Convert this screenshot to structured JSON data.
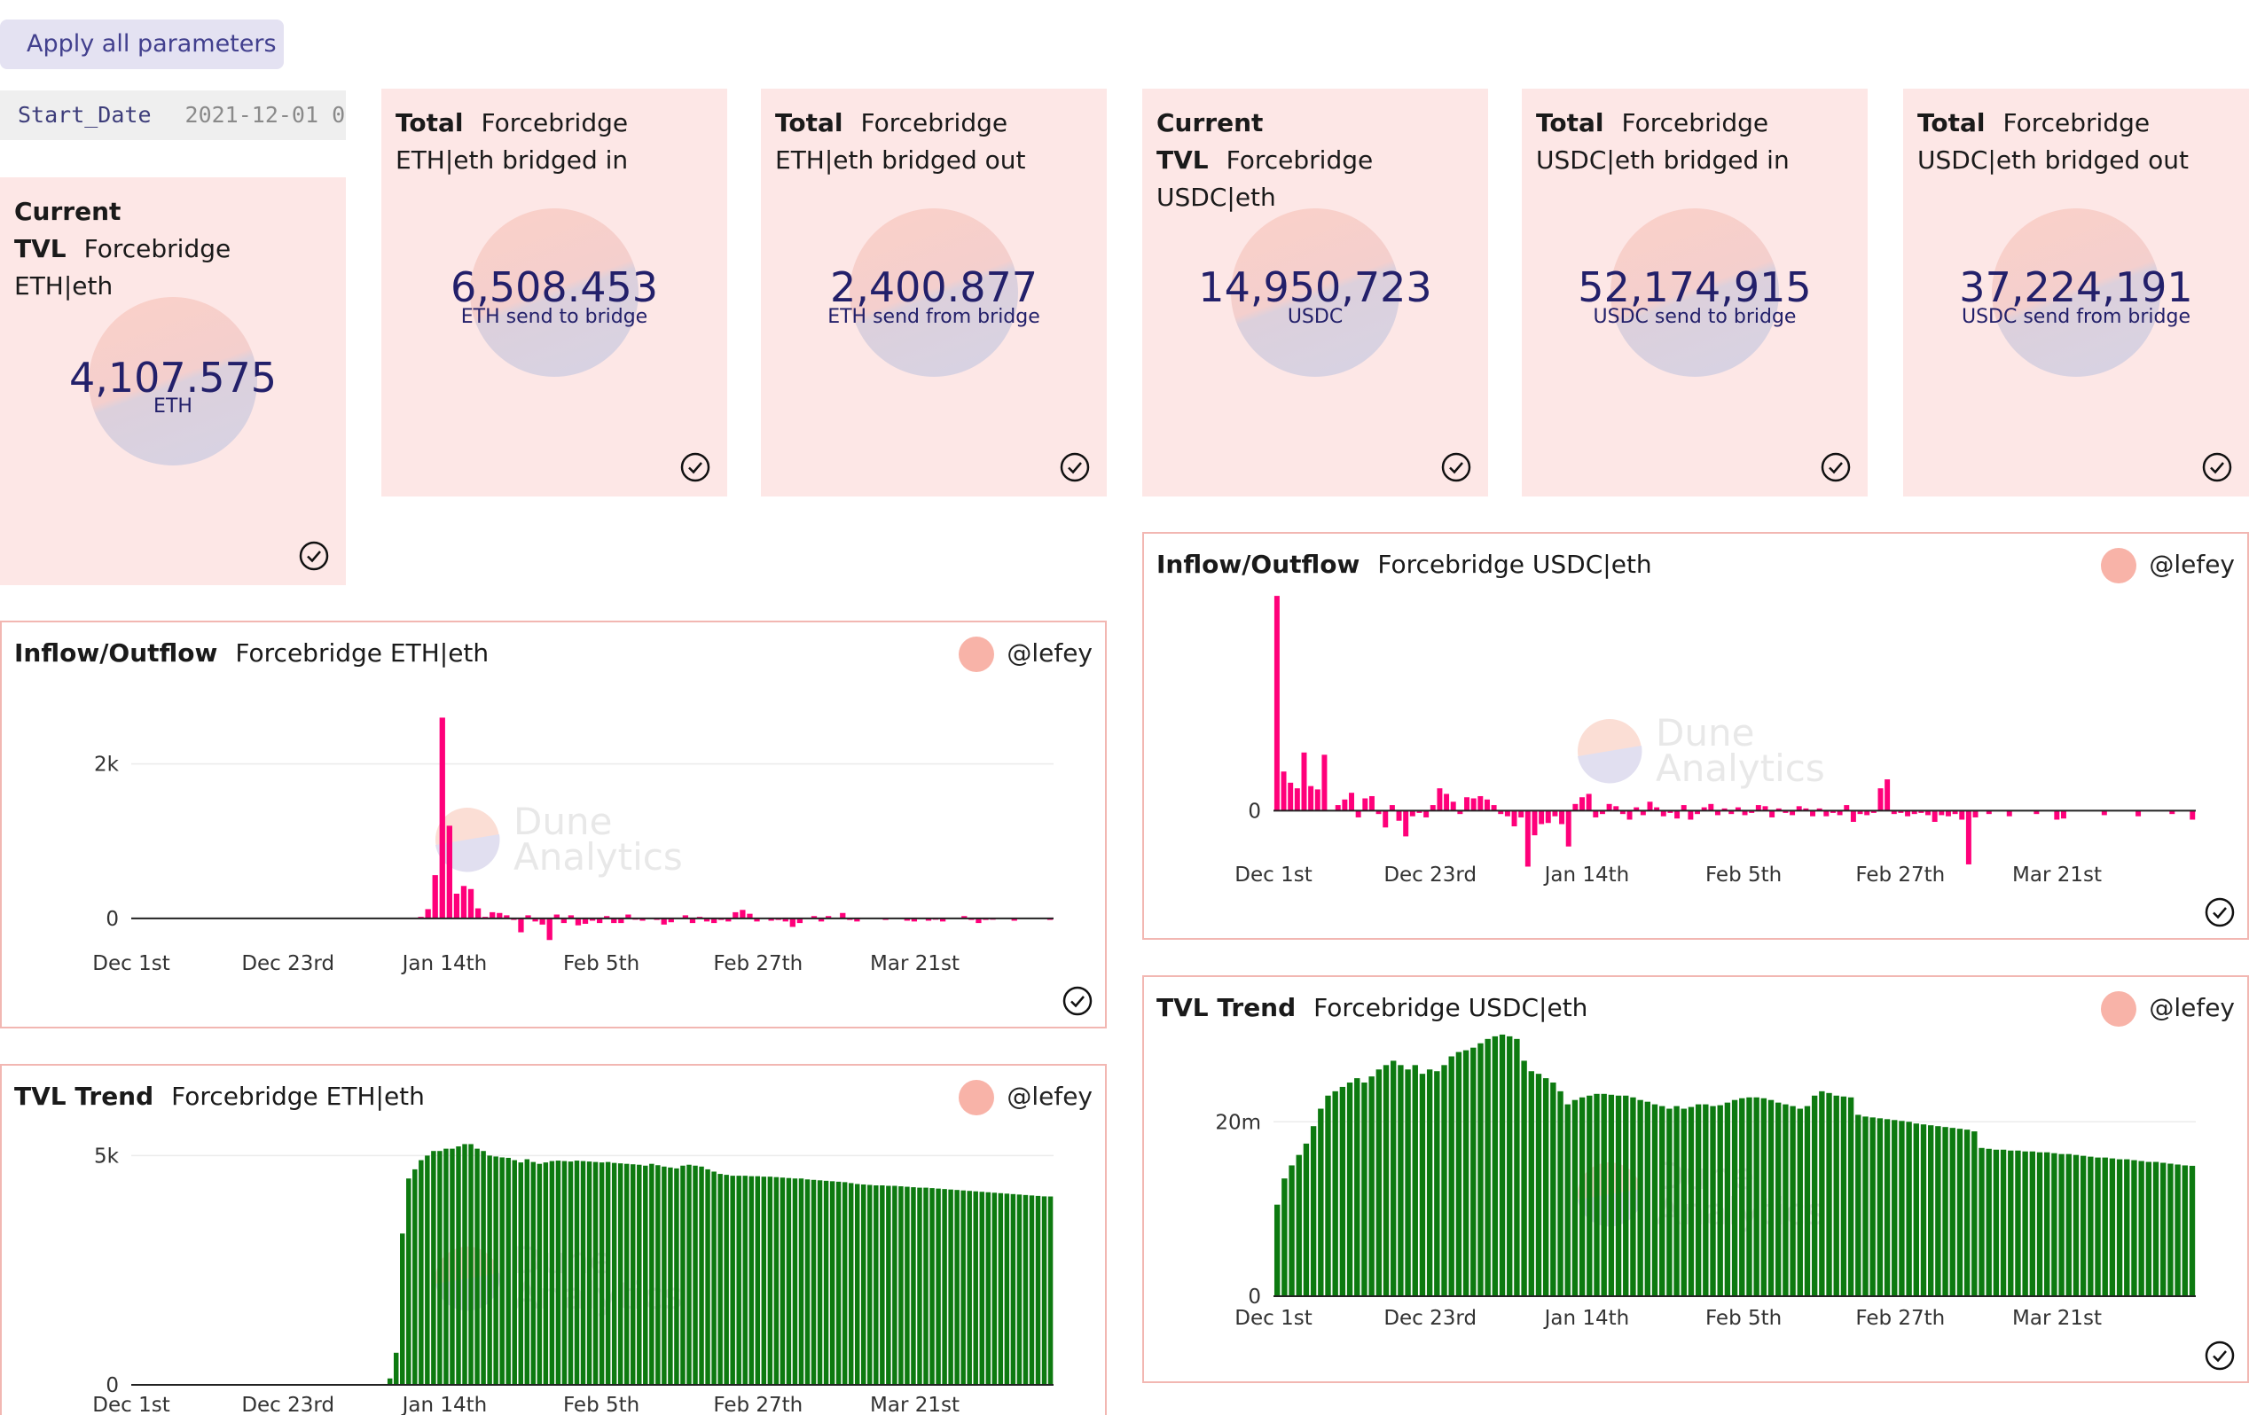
{
  "controls": {
    "apply_label": "Apply all parameters",
    "start_date_label": "Start_Date",
    "start_date_value": "2021-12-01 0"
  },
  "cards": [
    {
      "title_bold": "Current TVL",
      "title_rest": "Forcebridge ETH|eth",
      "value": "4,107.575",
      "unit": "ETH"
    },
    {
      "title_bold": "Total",
      "title_rest": "Forcebridge ETH|eth bridged in",
      "value": "6,508.453",
      "unit": "ETH send to bridge"
    },
    {
      "title_bold": "Total",
      "title_rest": "Forcebridge ETH|eth bridged out",
      "value": "2,400.877",
      "unit": "ETH send from bridge"
    },
    {
      "title_bold": "Current TVL",
      "title_rest": "Forcebridge USDC|eth",
      "value": "14,950,723",
      "unit": "USDC"
    },
    {
      "title_bold": "Total",
      "title_rest": "Forcebridge USDC|eth bridged in",
      "value": "52,174,915",
      "unit": "USDC send to bridge"
    },
    {
      "title_bold": "Total",
      "title_rest": "Forcebridge USDC|eth bridged out",
      "value": "37,224,191",
      "unit": "USDC send from bridge"
    }
  ],
  "panels": [
    {
      "title_bold": "Inflow/Outflow",
      "title_rest": "Forcebridge ETH|eth",
      "author": "@lefey"
    },
    {
      "title_bold": "TVL Trend",
      "title_rest": "Forcebridge ETH|eth",
      "author": "@lefey"
    },
    {
      "title_bold": "Inflow/Outflow",
      "title_rest": "Forcebridge USDC|eth",
      "author": "@lefey"
    },
    {
      "title_bold": "TVL Trend",
      "title_rest": "Forcebridge USDC|eth",
      "author": "@lefey"
    }
  ],
  "watermark": {
    "line1": "Dune",
    "line2": "Analytics"
  },
  "colors": {
    "inflow_bar": "#ff007a",
    "tvl_bar": "#0d7a10",
    "card_bg": "#fde7e6",
    "panel_border": "#f2b7b2",
    "accent": "#23206a"
  },
  "chart_data": [
    {
      "type": "bar",
      "title": "Inflow/Outflow Forcebridge ETH|eth",
      "x_ticks": [
        "Dec 1st",
        "Dec 23rd",
        "Jan 14th",
        "Feb 5th",
        "Feb 27th",
        "Mar 21st"
      ],
      "y_ticks": [
        "0",
        "2k"
      ],
      "ylim": [
        -300,
        2800
      ],
      "series": [
        {
          "x_start": "2021-12-01",
          "x_step_days": 1,
          "values": [
            0,
            0,
            0,
            0,
            0,
            0,
            0,
            0,
            0,
            0,
            0,
            0,
            0,
            0,
            0,
            0,
            0,
            0,
            0,
            0,
            0,
            0,
            0,
            0,
            0,
            0,
            0,
            0,
            0,
            0,
            0,
            0,
            0,
            0,
            0,
            0,
            0,
            0,
            0,
            0,
            20,
            120,
            560,
            2600,
            1200,
            320,
            420,
            380,
            130,
            20,
            80,
            70,
            40,
            -20,
            -180,
            40,
            -40,
            -80,
            -280,
            50,
            -60,
            40,
            -90,
            -70,
            -30,
            -60,
            30,
            -60,
            -60,
            50,
            -10,
            -30,
            0,
            -20,
            -80,
            -50,
            0,
            40,
            -60,
            20,
            -40,
            -60,
            -20,
            -40,
            80,
            110,
            60,
            -40,
            0,
            -30,
            -20,
            -40,
            -110,
            -60,
            0,
            30,
            -40,
            30,
            0,
            70,
            -20,
            -40,
            0,
            0,
            0,
            -20,
            0,
            10,
            -30,
            -40,
            0,
            -30,
            -10,
            -40,
            0,
            0,
            30,
            -20,
            -60,
            -20,
            -10,
            10,
            0,
            -30,
            0,
            10,
            0,
            0,
            -20
          ]
        }
      ]
    },
    {
      "type": "bar",
      "title": "TVL Trend Forcebridge ETH|eth",
      "x_ticks": [
        "Dec 1st",
        "Dec 23rd",
        "Jan 14th",
        "Feb 5th",
        "Feb 27th",
        "Mar 21st"
      ],
      "y_ticks": [
        "0",
        "5k"
      ],
      "ylim": [
        0,
        5800
      ],
      "series": [
        {
          "x_start": "2021-12-01",
          "x_step_days": 1,
          "values": [
            0,
            0,
            0,
            0,
            0,
            0,
            0,
            0,
            0,
            0,
            0,
            0,
            0,
            0,
            0,
            0,
            0,
            0,
            0,
            0,
            0,
            0,
            0,
            0,
            0,
            0,
            0,
            0,
            0,
            0,
            0,
            0,
            0,
            0,
            0,
            0,
            0,
            0,
            0,
            0,
            20,
            140,
            700,
            3300,
            4500,
            4700,
            4900,
            5000,
            5100,
            5100,
            5150,
            5150,
            5200,
            5250,
            5250,
            5150,
            5100,
            5000,
            4980,
            4960,
            4950,
            4900,
            4850,
            4920,
            4860,
            4820,
            4850,
            4880,
            4890,
            4880,
            4870,
            4890,
            4880,
            4870,
            4860,
            4850,
            4860,
            4840,
            4830,
            4820,
            4810,
            4800,
            4780,
            4820,
            4790,
            4760,
            4740,
            4720,
            4780,
            4800,
            4780,
            4760,
            4700,
            4650,
            4600,
            4580,
            4560,
            4560,
            4560,
            4550,
            4550,
            4540,
            4540,
            4530,
            4520,
            4510,
            4500,
            4500,
            4480,
            4470,
            4460,
            4450,
            4440,
            4430,
            4420,
            4400,
            4380,
            4370,
            4360,
            4350,
            4350,
            4340,
            4340,
            4330,
            4320,
            4310,
            4300,
            4300,
            4290,
            4280,
            4270,
            4260,
            4250,
            4240,
            4230,
            4220,
            4210,
            4200,
            4190,
            4180,
            4170,
            4160,
            4150,
            4140,
            4130,
            4120,
            4110,
            4108
          ]
        }
      ]
    },
    {
      "type": "bar",
      "title": "Inflow/Outflow Forcebridge USDC|eth",
      "x_ticks": [
        "Dec 1st",
        "Dec 23rd",
        "Jan 14th",
        "Feb 5th",
        "Feb 27th",
        "Mar 21st"
      ],
      "y_ticks": [
        "0"
      ],
      "ylim": [
        -5200000,
        20000000
      ],
      "series": [
        {
          "x_start": "2021-12-01",
          "x_step_days": 1,
          "values": [
            19200000,
            3500000,
            2500000,
            2000000,
            5200000,
            2200000,
            1900000,
            5000000,
            0,
            500000,
            1000000,
            1600000,
            -600000,
            1100000,
            1300000,
            -300000,
            -1500000,
            500000,
            -900000,
            -2300000,
            -500000,
            -200000,
            -600000,
            500000,
            2000000,
            1500000,
            800000,
            -300000,
            1200000,
            1100000,
            1300000,
            1000000,
            500000,
            -300000,
            -500000,
            -1400000,
            -600000,
            -5000000,
            -2200000,
            -1200000,
            -1100000,
            -500000,
            -1200000,
            -3200000,
            600000,
            1200000,
            1500000,
            -600000,
            -300000,
            600000,
            400000,
            -300000,
            -800000,
            300000,
            -400000,
            800000,
            300000,
            -500000,
            -200000,
            -700000,
            500000,
            -800000,
            -300000,
            300000,
            600000,
            -400000,
            200000,
            -300000,
            300000,
            -400000,
            -200000,
            500000,
            400000,
            -600000,
            200000,
            -200000,
            -400000,
            400000,
            200000,
            -500000,
            200000,
            -500000,
            -200000,
            -400000,
            500000,
            -1000000,
            -300000,
            -400000,
            -200000,
            2000000,
            2800000,
            -300000,
            -200000,
            -500000,
            -300000,
            -200000,
            -400000,
            -1000000,
            -400000,
            -500000,
            -300000,
            -800000,
            -4800000,
            -600000,
            0,
            -300000,
            0,
            0,
            -500000,
            0,
            0,
            0,
            -300000,
            0,
            0,
            -800000,
            -700000,
            0,
            0,
            0,
            0,
            0,
            -400000,
            0,
            0,
            0,
            0,
            -500000,
            0,
            0,
            0,
            0,
            -300000,
            0,
            0,
            -800000
          ]
        }
      ]
    },
    {
      "type": "bar",
      "title": "TVL Trend Forcebridge USDC|eth",
      "x_ticks": [
        "Dec 1st",
        "Dec 23rd",
        "Jan 14th",
        "Feb 5th",
        "Feb 27th",
        "Mar 21st"
      ],
      "y_ticks": [
        "0",
        "20m"
      ],
      "ylim": [
        0,
        30500000
      ],
      "series": [
        {
          "x_start": "2021-12-01",
          "x_step_days": 1,
          "values": [
            10500000,
            13500000,
            15000000,
            16200000,
            17500000,
            19500000,
            21500000,
            23000000,
            23500000,
            24000000,
            24500000,
            25000000,
            24500000,
            25200000,
            26000000,
            26500000,
            27000000,
            26500000,
            26000000,
            26500000,
            25500000,
            26000000,
            25800000,
            26500000,
            27500000,
            28000000,
            28200000,
            28500000,
            29000000,
            29500000,
            29800000,
            30000000,
            29800000,
            29500000,
            27000000,
            25800000,
            25500000,
            25000000,
            24500000,
            23500000,
            22000000,
            22500000,
            22800000,
            23000000,
            23200000,
            23200000,
            23100000,
            23000000,
            23000000,
            22800000,
            22500000,
            22300000,
            22000000,
            21800000,
            21500000,
            21800000,
            21500000,
            21700000,
            22000000,
            22000000,
            21800000,
            21900000,
            22200000,
            22500000,
            22700000,
            22800000,
            22800000,
            22700000,
            22500000,
            22200000,
            22000000,
            21800000,
            21500000,
            21800000,
            23000000,
            23500000,
            23300000,
            23000000,
            22900000,
            22800000,
            20800000,
            20600000,
            20500000,
            20400000,
            20300000,
            20200000,
            20100000,
            20000000,
            19800000,
            19700000,
            19600000,
            19500000,
            19400000,
            19300000,
            19200000,
            19100000,
            18900000,
            17000000,
            16900000,
            16800000,
            16800000,
            16700000,
            16700000,
            16600000,
            16600000,
            16500000,
            16500000,
            16400000,
            16300000,
            16300000,
            16200000,
            16100000,
            16000000,
            15900000,
            15900000,
            15800000,
            15700000,
            15700000,
            15600000,
            15500000,
            15400000,
            15400000,
            15300000,
            15200000,
            15100000,
            15000000,
            14950723
          ]
        }
      ]
    }
  ]
}
